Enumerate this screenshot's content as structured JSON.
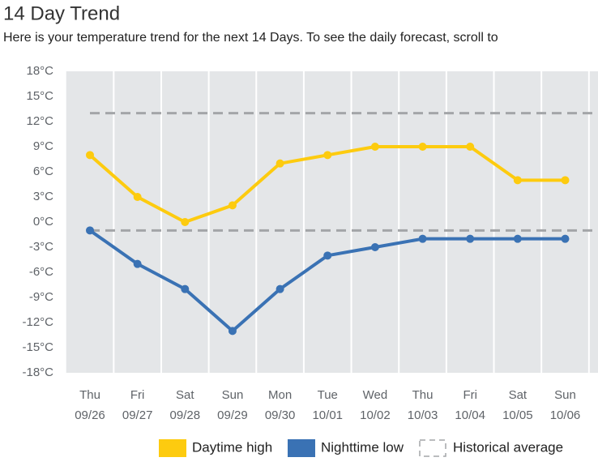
{
  "chart_data": {
    "type": "line",
    "title": "14 Day Trend",
    "subtitle": "Here is your temperature trend for the next 14 Days. To see the daily forecast, scroll to",
    "categories": [
      "Thu",
      "Fri",
      "Sat",
      "Sun",
      "Mon",
      "Tue",
      "Wed",
      "Thu",
      "Fri",
      "Sat",
      "Sun"
    ],
    "dates": [
      "09/26",
      "09/27",
      "09/28",
      "09/29",
      "09/30",
      "10/01",
      "10/02",
      "10/03",
      "10/04",
      "10/05",
      "10/06"
    ],
    "series": [
      {
        "name": "Daytime high",
        "color": "#fdcb0f",
        "values": [
          8,
          3,
          0,
          2,
          7,
          8,
          9,
          9,
          9,
          5,
          5
        ]
      },
      {
        "name": "Nighttime low",
        "color": "#3a72b4",
        "values": [
          -1,
          -5,
          -8,
          -13,
          -8,
          -4,
          -3,
          -2,
          -2,
          -2,
          -2
        ]
      }
    ],
    "reference": {
      "name": "Historical average",
      "color": "#a3a5a8",
      "values": [
        13,
        -1
      ]
    },
    "ylim": [
      -18,
      18
    ],
    "yticks": [
      {
        "value": 18,
        "label": "18°C"
      },
      {
        "value": 15,
        "label": "15°C"
      },
      {
        "value": 12,
        "label": "12°C"
      },
      {
        "value": 9,
        "label": "9°C"
      },
      {
        "value": 6,
        "label": "6°C"
      },
      {
        "value": 3,
        "label": "3°C"
      },
      {
        "value": 0,
        "label": "0°C"
      },
      {
        "value": -3,
        "label": "-3°C"
      },
      {
        "value": -6,
        "label": "-6°C"
      },
      {
        "value": -9,
        "label": "-9°C"
      },
      {
        "value": -12,
        "label": "-12°C"
      },
      {
        "value": -15,
        "label": "-15°C"
      },
      {
        "value": -18,
        "label": "-18°C"
      }
    ],
    "grid": true
  }
}
